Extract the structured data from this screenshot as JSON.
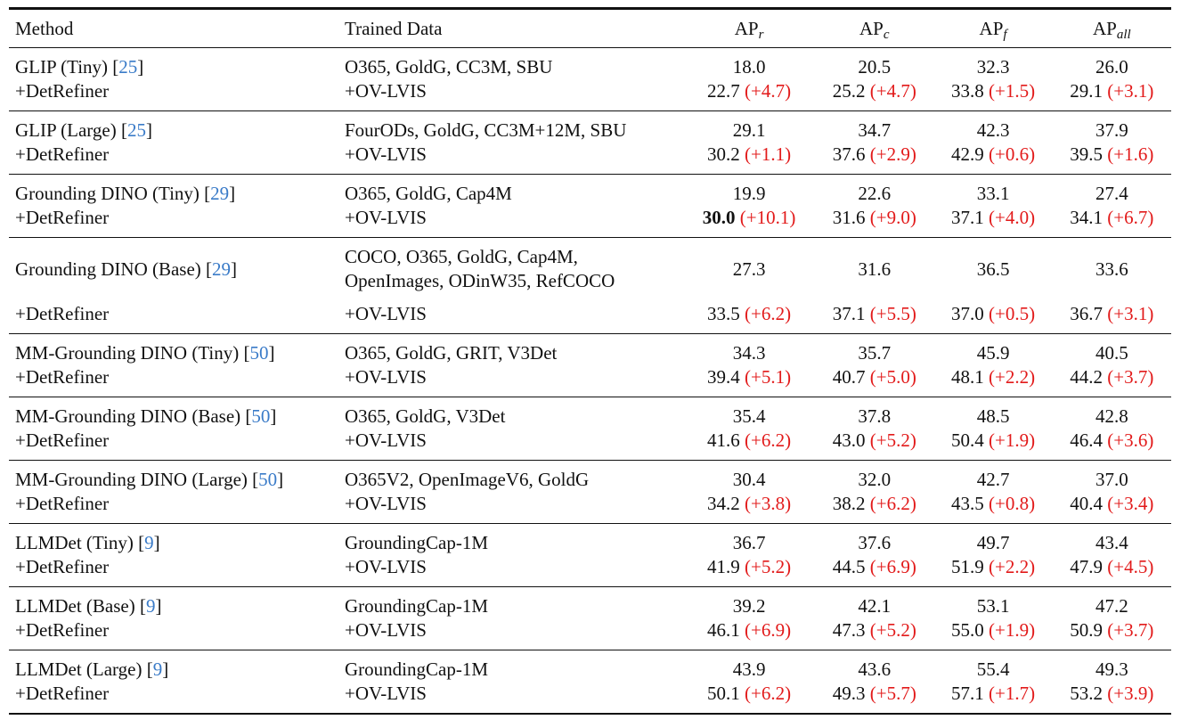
{
  "columns": {
    "method": "Method",
    "trained_data": "Trained Data",
    "apr": {
      "base": "AP",
      "sub": "r"
    },
    "apc": {
      "base": "AP",
      "sub": "c"
    },
    "apf": {
      "base": "AP",
      "sub": "f"
    },
    "apall": {
      "base": "AP",
      "sub": "all"
    }
  },
  "rows": [
    {
      "method": "GLIP (Tiny)",
      "ref": "25",
      "data": [
        "O365, GoldG, CC3M, SBU"
      ],
      "base": [
        "18.0",
        "20.5",
        "32.3",
        "26.0"
      ],
      "refined_label": "+DetRefiner",
      "refined_data": "+OV-LVIS",
      "refined": [
        "22.7",
        "25.2",
        "33.8",
        "29.1"
      ],
      "gains": [
        "(+4.7)",
        "(+4.7)",
        "(+1.5)",
        "(+3.1)"
      ]
    },
    {
      "method": "GLIP (Large)",
      "ref": "25",
      "data": [
        "FourODs, GoldG, CC3M+12M, SBU"
      ],
      "base": [
        "29.1",
        "34.7",
        "42.3",
        "37.9"
      ],
      "refined_label": "+DetRefiner",
      "refined_data": "+OV-LVIS",
      "refined": [
        "30.2",
        "37.6",
        "42.9",
        "39.5"
      ],
      "gains": [
        "(+1.1)",
        "(+2.9)",
        "(+0.6)",
        "(+1.6)"
      ]
    },
    {
      "method": "Grounding DINO (Tiny)",
      "ref": "29",
      "data": [
        "O365, GoldG, Cap4M"
      ],
      "base": [
        "19.9",
        "22.6",
        "33.1",
        "27.4"
      ],
      "refined_label": "+DetRefiner",
      "refined_data": "+OV-LVIS",
      "refined": [
        "30.0",
        "31.6",
        "37.1",
        "34.1"
      ],
      "gains": [
        "(+10.1)",
        "(+9.0)",
        "(+4.0)",
        "(+6.7)"
      ],
      "bold_refined": [
        true,
        false,
        false,
        false
      ]
    },
    {
      "method": "Grounding DINO (Base)",
      "ref": "29",
      "data": [
        "COCO, O365, GoldG, Cap4M,",
        "OpenImages, ODinW35, RefCOCO"
      ],
      "base": [
        "27.3",
        "31.6",
        "36.5",
        "33.6"
      ],
      "refined_label": "+DetRefiner",
      "refined_data": "+OV-LVIS",
      "refined": [
        "33.5",
        "37.1",
        "37.0",
        "36.7"
      ],
      "gains": [
        "(+6.2)",
        "(+5.5)",
        "(+0.5)",
        "(+3.1)"
      ]
    },
    {
      "method": "MM-Grounding DINO (Tiny)",
      "ref": "50",
      "data": [
        "O365, GoldG, GRIT, V3Det"
      ],
      "base": [
        "34.3",
        "35.7",
        "45.9",
        "40.5"
      ],
      "refined_label": "+DetRefiner",
      "refined_data": "+OV-LVIS",
      "refined": [
        "39.4",
        "40.7",
        "48.1",
        "44.2"
      ],
      "gains": [
        "(+5.1)",
        "(+5.0)",
        "(+2.2)",
        "(+3.7)"
      ]
    },
    {
      "method": "MM-Grounding DINO (Base)",
      "ref": "50",
      "data": [
        "O365, GoldG, V3Det"
      ],
      "base": [
        "35.4",
        "37.8",
        "48.5",
        "42.8"
      ],
      "refined_label": "+DetRefiner",
      "refined_data": "+OV-LVIS",
      "refined": [
        "41.6",
        "43.0",
        "50.4",
        "46.4"
      ],
      "gains": [
        "(+6.2)",
        "(+5.2)",
        "(+1.9)",
        "(+3.6)"
      ]
    },
    {
      "method": "MM-Grounding DINO (Large)",
      "ref": "50",
      "data": [
        "O365V2, OpenImageV6, GoldG"
      ],
      "base": [
        "30.4",
        "32.0",
        "42.7",
        "37.0"
      ],
      "refined_label": "+DetRefiner",
      "refined_data": "+OV-LVIS",
      "refined": [
        "34.2",
        "38.2",
        "43.5",
        "40.4"
      ],
      "gains": [
        "(+3.8)",
        "(+6.2)",
        "(+0.8)",
        "(+3.4)"
      ]
    },
    {
      "method": "LLMDet (Tiny)",
      "ref": "9",
      "data": [
        "GroundingCap-1M"
      ],
      "base": [
        "36.7",
        "37.6",
        "49.7",
        "43.4"
      ],
      "refined_label": "+DetRefiner",
      "refined_data": "+OV-LVIS",
      "refined": [
        "41.9",
        "44.5",
        "51.9",
        "47.9"
      ],
      "gains": [
        "(+5.2)",
        "(+6.9)",
        "(+2.2)",
        "(+4.5)"
      ]
    },
    {
      "method": "LLMDet (Base)",
      "ref": "9",
      "data": [
        "GroundingCap-1M"
      ],
      "base": [
        "39.2",
        "42.1",
        "53.1",
        "47.2"
      ],
      "refined_label": "+DetRefiner",
      "refined_data": "+OV-LVIS",
      "refined": [
        "46.1",
        "47.3",
        "55.0",
        "50.9"
      ],
      "gains": [
        "(+6.9)",
        "(+5.2)",
        "(+1.9)",
        "(+3.7)"
      ]
    },
    {
      "method": "LLMDet (Large)",
      "ref": "9",
      "data": [
        "GroundingCap-1M"
      ],
      "base": [
        "43.9",
        "43.6",
        "55.4",
        "49.3"
      ],
      "refined_label": "+DetRefiner",
      "refined_data": "+OV-LVIS",
      "refined": [
        "50.1",
        "49.3",
        "57.1",
        "53.2"
      ],
      "gains": [
        "(+6.2)",
        "(+5.7)",
        "(+1.7)",
        "(+3.9)"
      ]
    }
  ]
}
